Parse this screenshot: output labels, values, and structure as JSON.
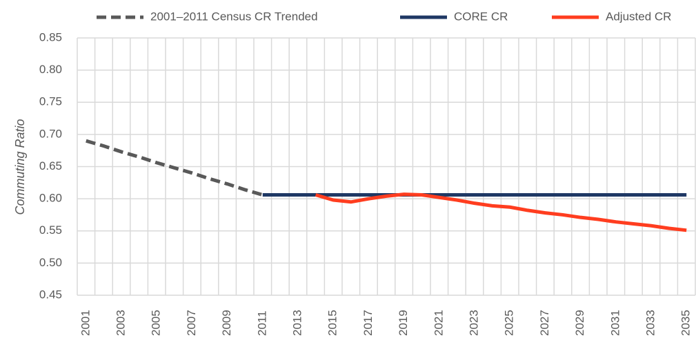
{
  "chart_data": {
    "type": "line",
    "y_label": "Commuting Ratio",
    "categories": [
      "2001",
      null,
      "2003",
      null,
      "2005",
      null,
      "2007",
      null,
      "2009",
      null,
      "2011",
      null,
      "2013",
      null,
      "2015",
      null,
      "2017",
      null,
      "2019",
      null,
      "2021",
      null,
      "2023",
      null,
      "2025",
      null,
      "2027",
      null,
      "2029",
      null,
      "2031",
      null,
      "2033",
      null,
      "2035"
    ],
    "series": [
      {
        "name": "2001–2011 Census CR Trended",
        "color": "#595959",
        "dashed": true,
        "values": [
          0.69,
          0.682,
          0.673,
          0.665,
          0.656,
          0.648,
          0.64,
          0.631,
          0.623,
          0.614,
          0.606,
          null,
          null,
          null,
          null,
          null,
          null,
          null,
          null,
          null,
          null,
          null,
          null,
          null,
          null,
          null,
          null,
          null,
          null,
          null,
          null,
          null,
          null,
          null,
          null
        ]
      },
      {
        "name": "CORE CR",
        "color": "#1f3864",
        "values": [
          null,
          null,
          null,
          null,
          null,
          null,
          null,
          null,
          null,
          null,
          0.606,
          0.606,
          0.606,
          0.606,
          0.606,
          0.606,
          0.606,
          0.606,
          0.606,
          0.606,
          0.606,
          0.606,
          0.606,
          0.606,
          0.606,
          0.606,
          0.606,
          0.606,
          0.606,
          0.606,
          0.606,
          0.606,
          0.606,
          0.606,
          0.606
        ]
      },
      {
        "name": "Adjusted CR",
        "color": "#ff3d1f",
        "values": [
          null,
          null,
          null,
          null,
          null,
          null,
          null,
          null,
          null,
          null,
          null,
          null,
          null,
          0.606,
          0.598,
          0.595,
          0.6,
          0.604,
          0.607,
          0.606,
          0.602,
          0.598,
          0.593,
          0.589,
          0.587,
          0.582,
          0.578,
          0.575,
          0.571,
          0.568,
          0.564,
          0.561,
          0.558,
          0.554,
          0.551
        ]
      }
    ],
    "ylim": [
      0.45,
      0.85
    ],
    "yticks": [
      0.45,
      {
        "value": 0.5,
        "label": "0.50"
      },
      0.55,
      {
        "value": 0.6,
        "label": "0.60"
      },
      0.65,
      {
        "value": 0.7,
        "label": "0.70"
      },
      0.75,
      {
        "value": 0.8,
        "label": "0.80"
      },
      0.85
    ],
    "grid": true
  }
}
